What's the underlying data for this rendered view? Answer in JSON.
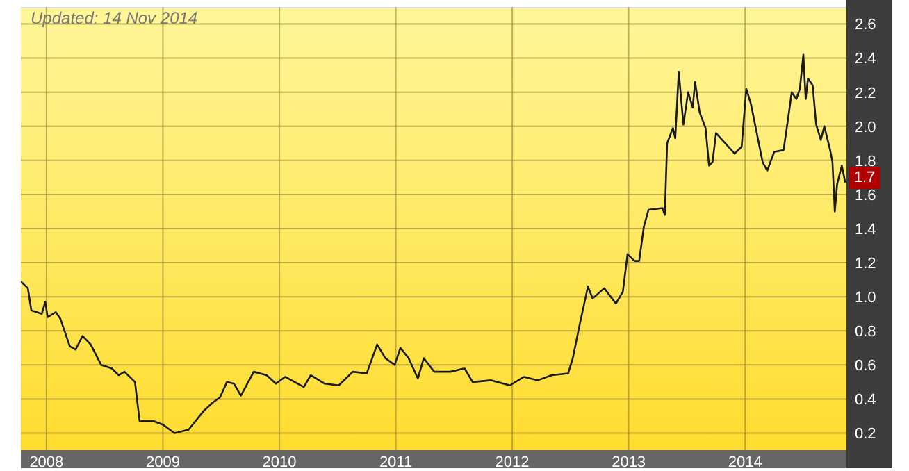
{
  "chart_data": {
    "type": "line",
    "annotations": [
      "Updated: 14 Nov 2014",
      {
        "text": "1.7",
        "x": 2014.87,
        "y": 1.7
      }
    ],
    "x": [
      2007.78,
      2007.84,
      2007.87,
      2007.96,
      2007.99,
      2008.01,
      2008.08,
      2008.12,
      2008.2,
      2008.25,
      2008.31,
      2008.38,
      2008.47,
      2008.56,
      2008.62,
      2008.67,
      2008.76,
      2008.8,
      2008.92,
      2009.0,
      2009.1,
      2009.22,
      2009.35,
      2009.43,
      2009.49,
      2009.55,
      2009.61,
      2009.67,
      2009.78,
      2009.89,
      2009.97,
      2010.05,
      2010.21,
      2010.27,
      2010.39,
      2010.51,
      2010.63,
      2010.75,
      2010.84,
      2010.91,
      2010.99,
      2011.04,
      2011.11,
      2011.19,
      2011.24,
      2011.33,
      2011.47,
      2011.59,
      2011.66,
      2011.82,
      2011.98,
      2012.1,
      2012.22,
      2012.34,
      2012.48,
      2012.52,
      2012.58,
      2012.65,
      2012.69,
      2012.79,
      2012.89,
      2012.95,
      2012.99,
      2013.05,
      2013.09,
      2013.13,
      2013.17,
      2013.29,
      2013.31,
      2013.33,
      2013.38,
      2013.4,
      2013.43,
      2013.47,
      2013.51,
      2013.55,
      2013.57,
      2013.61,
      2013.66,
      2013.69,
      2013.72,
      2013.75,
      2013.83,
      2013.91,
      2013.97,
      2014.01,
      2014.05,
      2014.1,
      2014.15,
      2014.19,
      2014.25,
      2014.33,
      2014.37,
      2014.4,
      2014.44,
      2014.47,
      2014.5,
      2014.52,
      2014.54,
      2014.58,
      2014.61,
      2014.65,
      2014.68,
      2014.73,
      2014.75,
      2014.77,
      2014.79,
      2014.83,
      2014.86
    ],
    "series": [
      {
        "color": "#1a1a1a",
        "values": [
          1.09,
          1.05,
          0.92,
          0.9,
          0.97,
          0.88,
          0.91,
          0.87,
          0.71,
          0.69,
          0.77,
          0.72,
          0.6,
          0.58,
          0.54,
          0.56,
          0.5,
          0.27,
          0.27,
          0.25,
          0.2,
          0.22,
          0.33,
          0.38,
          0.41,
          0.5,
          0.49,
          0.42,
          0.56,
          0.54,
          0.49,
          0.53,
          0.47,
          0.54,
          0.49,
          0.48,
          0.56,
          0.55,
          0.72,
          0.64,
          0.6,
          0.7,
          0.64,
          0.52,
          0.64,
          0.56,
          0.56,
          0.58,
          0.5,
          0.51,
          0.48,
          0.53,
          0.51,
          0.54,
          0.55,
          0.64,
          0.84,
          1.06,
          0.99,
          1.05,
          0.96,
          1.03,
          1.25,
          1.21,
          1.21,
          1.41,
          1.51,
          1.52,
          1.48,
          1.9,
          1.99,
          1.93,
          2.32,
          2.01,
          2.2,
          2.11,
          2.26,
          2.08,
          1.99,
          1.77,
          1.79,
          1.96,
          1.9,
          1.84,
          1.88,
          2.22,
          2.13,
          1.96,
          1.79,
          1.74,
          1.85,
          1.86,
          2.05,
          2.2,
          2.16,
          2.22,
          2.42,
          2.16,
          2.28,
          2.24,
          2.01,
          1.92,
          2.0,
          1.86,
          1.79,
          1.5,
          1.66,
          1.77,
          1.67
        ]
      }
    ],
    "xlim": [
      2007.78,
      2014.87
    ],
    "xticks": [
      2008,
      2009,
      2010,
      2011,
      2012,
      2013,
      2014
    ],
    "ylim": [
      0.1,
      2.7
    ],
    "yticks": [
      0.2,
      0.4,
      0.6,
      0.8,
      {
        "value": 1,
        "label": "1.0"
      },
      1.2,
      1.4,
      1.6,
      1.8,
      {
        "value": 2,
        "label": "2.0"
      },
      2.2,
      2.4,
      2.6
    ],
    "grid": true,
    "legend": false,
    "marker": "none",
    "line_style": "solid"
  }
}
